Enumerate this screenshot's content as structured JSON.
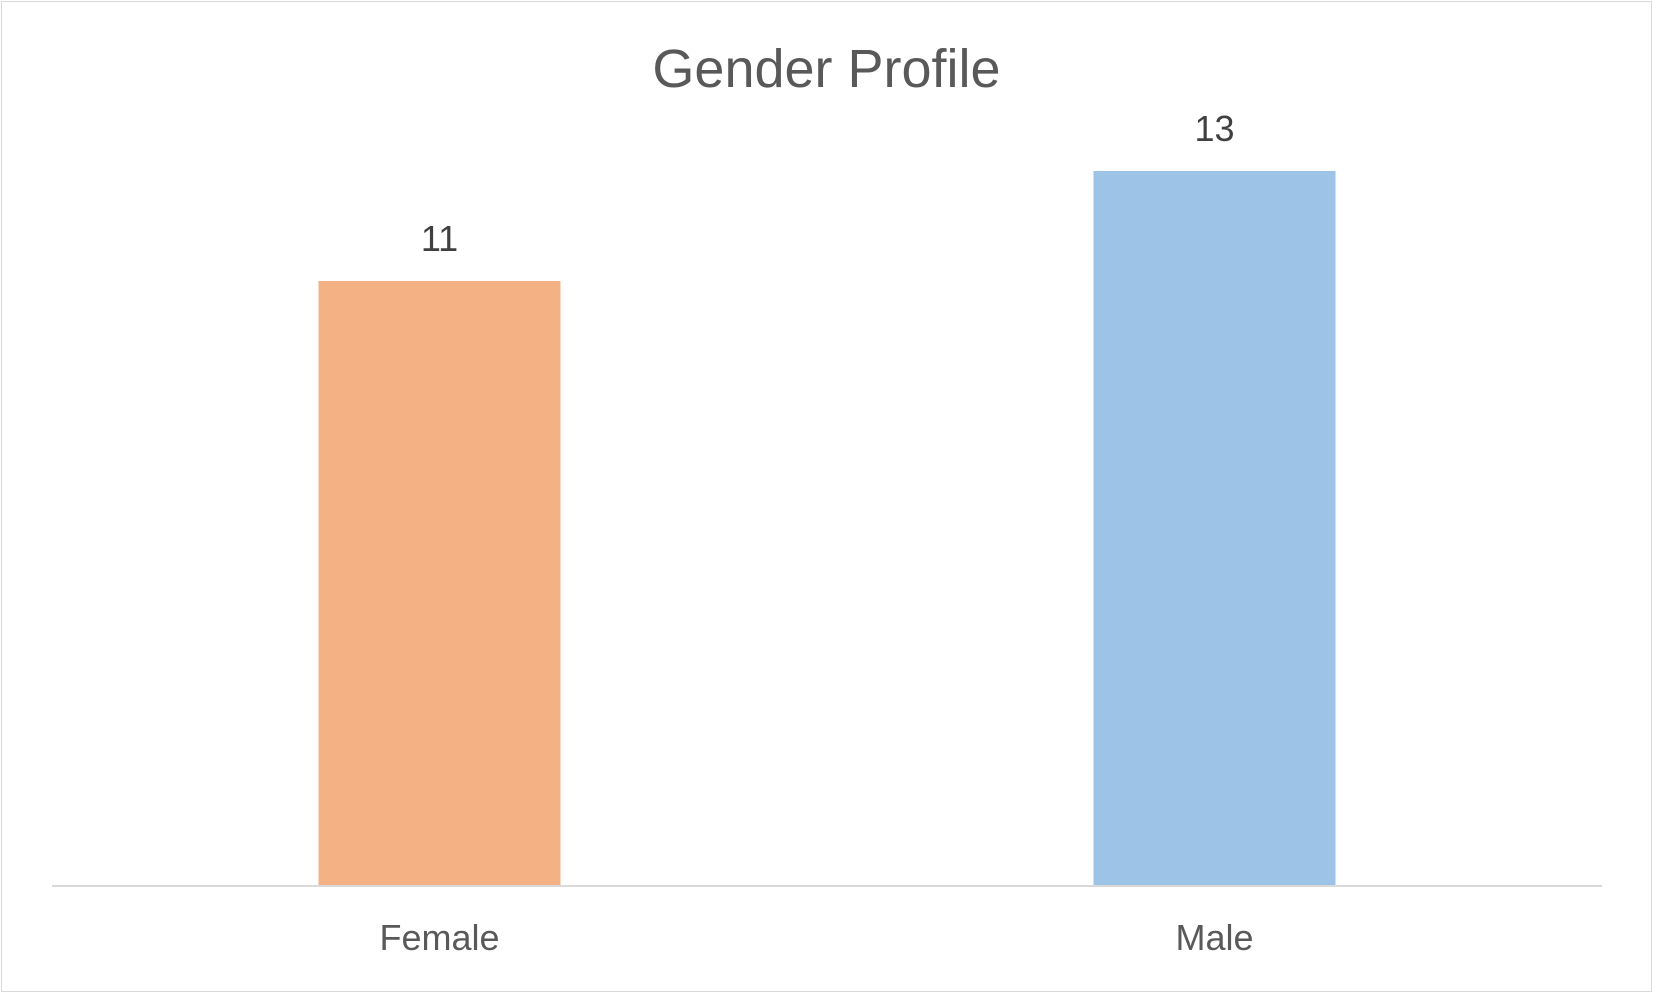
{
  "chart_data": {
    "type": "bar",
    "title": "Gender Profile",
    "categories": [
      "Female",
      "Male"
    ],
    "values": [
      11,
      13
    ],
    "colors": [
      "#f4b183",
      "#9dc3e6"
    ],
    "axis_color": "#d9d9d9",
    "ylim": [
      0,
      14
    ],
    "grid": false,
    "legend": "none",
    "data_labels": true
  }
}
